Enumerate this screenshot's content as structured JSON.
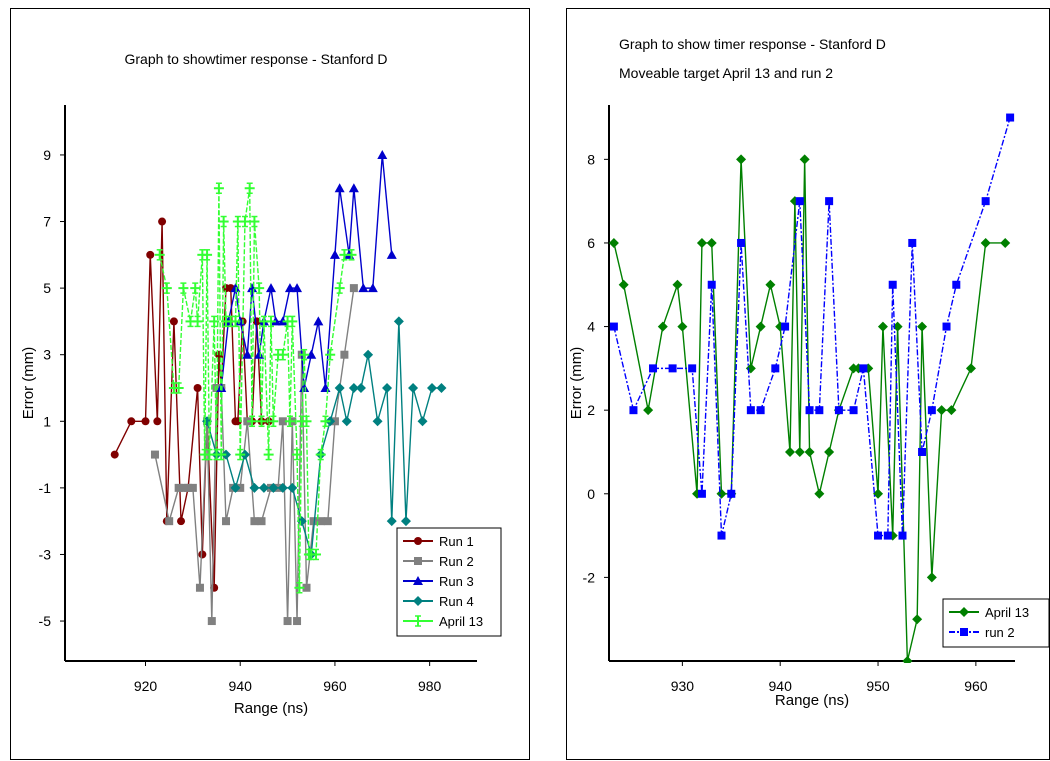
{
  "chart_data": [
    {
      "type": "line",
      "title": "Graph to showtimer response - Stanford D",
      "xlabel": "Range (ns)",
      "ylabel": "Error (mm)",
      "xlim": [
        903,
        990
      ],
      "ylim": [
        -6.2,
        10.5
      ],
      "xticks": [
        920,
        940,
        960,
        980
      ],
      "yticks": [
        9,
        7,
        5,
        3,
        1,
        -1,
        -3,
        -5
      ],
      "legend_position": "bottom-right",
      "series": [
        {
          "name": "Run 1",
          "color": "#800000",
          "marker": "circle",
          "x": [
            913.5,
            917,
            920,
            921,
            922.5,
            923.5,
            924.5,
            926,
            927.5,
            929,
            931,
            932,
            933,
            934.5,
            935.5,
            936,
            937,
            938,
            939,
            939.5,
            940.5,
            941.5,
            942.5,
            943.5,
            944.5,
            946
          ],
          "y": [
            0,
            1,
            1,
            6,
            1,
            7,
            -2,
            4,
            -2,
            -1,
            2,
            -3,
            1,
            -4,
            3,
            2,
            5,
            5,
            1,
            1,
            4,
            1,
            1,
            4,
            1,
            1
          ]
        },
        {
          "name": "Run 2",
          "color": "#808080",
          "marker": "square",
          "x": [
            922,
            925,
            927,
            928,
            929,
            930,
            931.5,
            933,
            934,
            935,
            936,
            937,
            938.5,
            940,
            941.5,
            943,
            944.5,
            946.5,
            948,
            949,
            950,
            951,
            952,
            953,
            954,
            955.5,
            957,
            958.5,
            960,
            962,
            964
          ],
          "y": [
            0,
            -2,
            -1,
            -1,
            -1,
            -1,
            -4,
            1,
            -5,
            2,
            2,
            -2,
            -1,
            -1,
            1,
            -2,
            -2,
            -1,
            -1,
            1,
            -5,
            1,
            -5,
            3,
            -4,
            -2,
            -2,
            -2,
            1,
            3,
            5
          ]
        },
        {
          "name": "Run 3",
          "color": "#0000cc",
          "marker": "triangle",
          "x": [
            936,
            937.5,
            939,
            940,
            941.5,
            942.5,
            944,
            945,
            946.5,
            947.5,
            949,
            950.5,
            952,
            953.5,
            955,
            956.5,
            958,
            960,
            961,
            963,
            964,
            966,
            968,
            970,
            972
          ],
          "y": [
            2,
            4,
            5,
            4,
            3,
            5,
            3,
            4,
            5,
            4,
            4,
            5,
            5,
            2,
            3,
            4,
            2,
            6,
            8,
            6,
            8,
            5,
            5,
            9,
            6
          ]
        },
        {
          "name": "Run 4",
          "color": "#008080",
          "marker": "diamond",
          "x": [
            933,
            935,
            937,
            939,
            941,
            943,
            945,
            947,
            949,
            951,
            953,
            955,
            957,
            959,
            961,
            962.5,
            964,
            965.5,
            967,
            969,
            971,
            972,
            973.5,
            975,
            976.5,
            978.5,
            980.5,
            982.5
          ],
          "y": [
            1,
            0,
            0,
            -1,
            0,
            -1,
            -1,
            -1,
            -1,
            -1,
            -2,
            -3,
            0,
            1,
            2,
            1,
            2,
            2,
            3,
            1,
            2,
            -2,
            4,
            -2,
            2,
            1,
            2,
            2
          ]
        },
        {
          "name": "April 13",
          "color": "#33ff33",
          "marker": "plus",
          "x": [
            923,
            924.5,
            926,
            927,
            928,
            929.5,
            930.5,
            931,
            932,
            932.5,
            933,
            933.5,
            934.5,
            935,
            935.5,
            936,
            936.5,
            937,
            938,
            939,
            939.5,
            940,
            941,
            942,
            942.5,
            943,
            944,
            944.5,
            945,
            946,
            946.5,
            947,
            948,
            949,
            950,
            950.5,
            951,
            952,
            952.5,
            953,
            953.5,
            954,
            954.5,
            955,
            956,
            957,
            958,
            959,
            961,
            962,
            963.5
          ],
          "y": [
            6,
            5,
            2,
            2,
            5,
            4,
            5,
            4,
            6,
            0,
            6,
            0,
            4,
            0,
            8,
            0,
            7,
            4,
            4,
            4,
            7,
            0,
            7,
            8,
            1,
            7,
            5,
            1,
            4,
            0,
            4,
            1,
            3,
            3,
            4,
            1,
            4,
            0,
            -4,
            1,
            3,
            1,
            -3,
            -3,
            -3,
            0,
            1,
            3,
            5,
            6,
            6
          ]
        }
      ]
    },
    {
      "type": "line",
      "title": "Graph to show timer response - Stanford D",
      "subtitle": "Moveable target April 13 and run 2",
      "xlabel": "Range (ns)",
      "ylabel": "Error (mm)",
      "xlim": [
        922.5,
        964
      ],
      "ylim": [
        -4,
        9.3
      ],
      "xticks": [
        930,
        940,
        950,
        960
      ],
      "yticks": [
        8,
        6,
        4,
        2,
        0,
        -2
      ],
      "legend_position": "bottom-right",
      "series": [
        {
          "name": "April 13",
          "color": "#008000",
          "marker": "diamond",
          "x": [
            923,
            924,
            926.5,
            928,
            929.5,
            930,
            931.5,
            932,
            933,
            934,
            935,
            936,
            937,
            938,
            939,
            940,
            941,
            941.5,
            942,
            942.5,
            943,
            944,
            945,
            946,
            947.5,
            948,
            949,
            950,
            950.5,
            951.5,
            952,
            953,
            954,
            954.5,
            955.5,
            956.5,
            957.5,
            959.5,
            961,
            963
          ],
          "y": [
            6,
            5,
            2,
            4,
            5,
            4,
            0,
            6,
            6,
            0,
            0,
            8,
            3,
            4,
            5,
            4,
            1,
            7,
            1,
            8,
            1,
            0,
            1,
            2,
            3,
            3,
            3,
            0,
            4,
            -1,
            4,
            -4,
            -3,
            4,
            -2,
            2,
            2,
            3,
            6,
            6
          ]
        },
        {
          "name": "run 2",
          "color": "#0000ff",
          "marker": "square",
          "x": [
            923,
            925,
            927,
            929,
            931,
            932,
            933,
            934,
            935,
            936,
            937,
            938,
            939.5,
            940.5,
            942,
            943,
            944,
            945,
            946,
            947.5,
            948.5,
            950,
            951,
            951.5,
            952.5,
            953.5,
            954.5,
            955.5,
            957,
            958,
            961,
            963.5
          ],
          "y": [
            4,
            2,
            3,
            3,
            3,
            0,
            5,
            -1,
            0,
            6,
            2,
            2,
            3,
            4,
            7,
            2,
            2,
            7,
            2,
            2,
            3,
            -1,
            -1,
            5,
            -1,
            6,
            1,
            2,
            4,
            5,
            7,
            9
          ]
        }
      ]
    }
  ]
}
